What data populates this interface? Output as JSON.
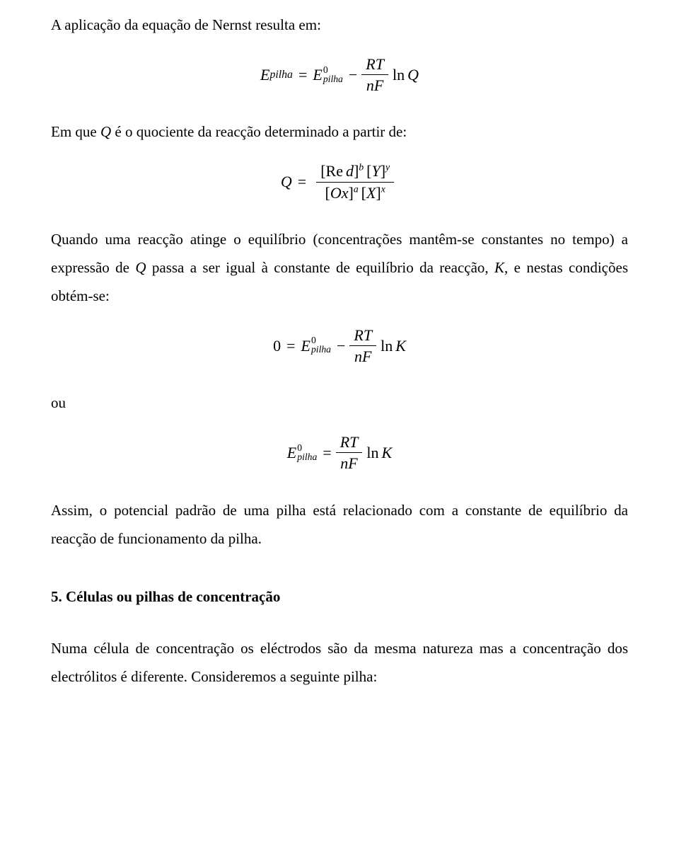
{
  "intro": "A aplicação da equação de Nernst resulta em:",
  "eq1": {
    "E": "E",
    "pilha": "pilha",
    "eq": "=",
    "zero": "0",
    "minus": "−",
    "RT": "RT",
    "nF": "nF",
    "ln": "ln",
    "Q": "Q"
  },
  "para2_before_Q": "Em que ",
  "para2_Q": "Q",
  "para2_after_Q": " é o quociente da reacção determinado a partir de:",
  "eq2": {
    "Q": "Q",
    "eq": "=",
    "lb": "[",
    "rb": "]",
    "Re": "Re",
    "d": "d",
    "b": "b",
    "Y": "Y",
    "y": "y",
    "Ox": "Ox",
    "a": "a",
    "X": "X",
    "x": "x"
  },
  "para3_a": "Quando uma reacção atinge o equilíbrio (concentrações mantêm-se constantes no tempo) a expressão de ",
  "para3_Q": "Q",
  "para3_b": " passa a ser igual à constante de equilíbrio da reacção, ",
  "para3_K": "K",
  "para3_c": ", e nestas condições obtém-se:",
  "eq3": {
    "zero_lhs": "0",
    "eq": "=",
    "E": "E",
    "pilha": "pilha",
    "zero_sup": "0",
    "minus": "−",
    "RT": "RT",
    "nF": "nF",
    "ln": "ln",
    "K": "K"
  },
  "ou": "ou",
  "eq4": {
    "E": "E",
    "pilha": "pilha",
    "zero": "0",
    "eq": "=",
    "RT": "RT",
    "nF": "nF",
    "ln": "ln",
    "K": "K"
  },
  "para4": "Assim, o potencial padrão de uma pilha está relacionado com a constante de equilíbrio da reacção de funcionamento da pilha.",
  "heading": "5. Células ou pilhas de concentração",
  "para5": "Numa célula de concentração os eléctrodos são da mesma natureza mas a concentração dos electrólitos é diferente. Consideremos a seguinte pilha:"
}
